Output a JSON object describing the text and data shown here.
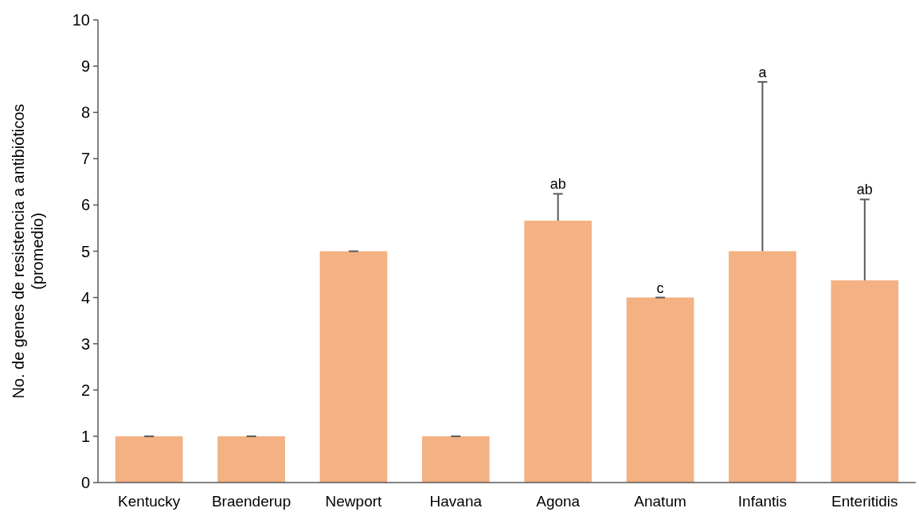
{
  "chart_data": {
    "type": "bar",
    "ylabel": "No. de genes de resistencia a  antibióticos\n(promedio)",
    "categories": [
      "Kentucky",
      "Braenderup",
      "Newport",
      "Havana",
      "Agona",
      "Anatum",
      "Infantis",
      "Enteritidis"
    ],
    "values": [
      1,
      1,
      5,
      1,
      5.66,
      4,
      5,
      4.37
    ],
    "errors": [
      0,
      0,
      0,
      0,
      [
        5.66,
        6.24
      ],
      0,
      [
        5,
        8.66
      ],
      [
        4.37,
        6.12
      ]
    ],
    "color": "#f4b183",
    "ylim": [
      0,
      10
    ],
    "yticks": [
      0,
      1,
      2,
      3,
      4,
      5,
      6,
      7,
      8,
      9,
      10
    ],
    "grid": false,
    "annotations": [
      {
        "text": "ab",
        "x": "Agona",
        "y": 6.24
      },
      {
        "text": "c",
        "x": "Anatum",
        "y": 4
      },
      {
        "text": "a",
        "x": "Infantis",
        "y": 8.66
      },
      {
        "text": "ab",
        "x": "Enteritidis",
        "y": 6.12
      }
    ]
  }
}
